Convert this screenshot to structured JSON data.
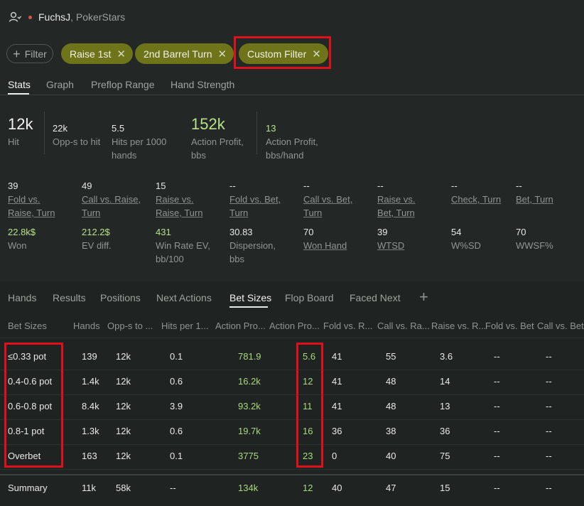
{
  "header": {
    "username": "FuchsJ",
    "site": ", PokerStars",
    "user_icon": "user-icon"
  },
  "filters": {
    "add_label": "Filter",
    "chips": [
      "Raise 1st",
      "2nd Barrel Turn",
      "Custom Filter"
    ]
  },
  "top_tabs": [
    "Stats",
    "Graph",
    "Preflop Range",
    "Hand Strength"
  ],
  "summary_stats": [
    {
      "value": "12k",
      "label": "Hit"
    },
    {
      "value": "22k",
      "label": "Opp-s to hit"
    },
    {
      "value": "5.5",
      "label": "Hits per 1000 hands"
    },
    {
      "value": "152k",
      "label": "Action Profit, bbs"
    },
    {
      "value": "13",
      "label": "Action Profit, bbs/hand"
    }
  ],
  "stats_row1": [
    {
      "value": "39",
      "label": "Fold vs. Raise, Turn"
    },
    {
      "value": "49",
      "label": "Call vs. Raise, Turn"
    },
    {
      "value": "15",
      "label": "Raise vs. Raise, Turn"
    },
    {
      "value": "--",
      "label": "Fold vs. Bet, Turn"
    },
    {
      "value": "--",
      "label": "Call vs. Bet, Turn"
    },
    {
      "value": "--",
      "label": "Raise vs. Bet, Turn"
    },
    {
      "value": "--",
      "label": "Check, Turn"
    },
    {
      "value": "--",
      "label": "Bet, Turn"
    }
  ],
  "stats_row2": [
    {
      "value": "22.8k$",
      "label": "Won"
    },
    {
      "value": "212.2$",
      "label": "EV diff."
    },
    {
      "value": "431",
      "label": "Win Rate EV, bb/100"
    },
    {
      "value": "30.83",
      "label": "Dispersion, bbs"
    },
    {
      "value": "70",
      "label": "Won Hand"
    },
    {
      "value": "39",
      "label": "WTSD"
    },
    {
      "value": "54",
      "label": "W%SD"
    },
    {
      "value": "70",
      "label": "WWSF%"
    }
  ],
  "sub_tabs": [
    "Hands",
    "Results",
    "Positions",
    "Next Actions",
    "Bet Sizes",
    "Flop Board",
    "Faced Next"
  ],
  "add_tab_icon": "plus-icon",
  "table": {
    "headers": [
      "Bet Sizes",
      "Hands",
      "Opp-s to ...",
      "Hits per 1...",
      "Action Pro...",
      "Action Pro...",
      "Fold vs. R...",
      "Call vs. Ra...",
      "Raise vs. R...",
      "Fold vs. Bet",
      "Call vs. Bet"
    ],
    "rows": [
      [
        "≤0.33 pot",
        "139",
        "12k",
        "0.1",
        "781.9",
        "5.6",
        "41",
        "55",
        "3.6",
        "--",
        "--"
      ],
      [
        "0.4-0.6 pot",
        "1.4k",
        "12k",
        "0.6",
        "16.2k",
        "12",
        "41",
        "48",
        "14",
        "--",
        "--"
      ],
      [
        "0.6-0.8 pot",
        "8.4k",
        "12k",
        "3.9",
        "93.2k",
        "11",
        "41",
        "48",
        "13",
        "--",
        "--"
      ],
      [
        "0.8-1 pot",
        "1.3k",
        "12k",
        "0.6",
        "19.7k",
        "16",
        "36",
        "38",
        "36",
        "--",
        "--"
      ],
      [
        "Overbet",
        "163",
        "12k",
        "0.1",
        "3775",
        "23",
        "0",
        "40",
        "75",
        "--",
        "--"
      ]
    ],
    "summary": [
      "Summary",
      "11k",
      "58k",
      "--",
      "134k",
      "12",
      "40",
      "47",
      "15",
      "--",
      "--"
    ]
  },
  "colors": {
    "chip": "#6d7419",
    "highlight": "#e0101a",
    "positive": "#b9e08a"
  }
}
